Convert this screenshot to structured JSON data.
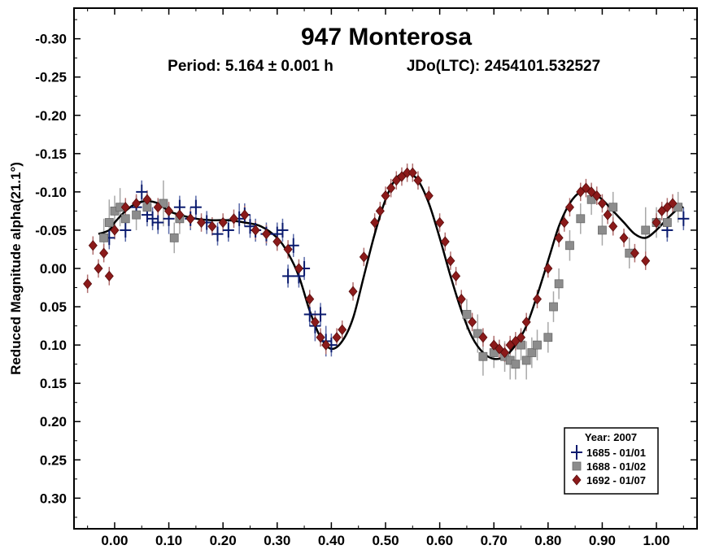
{
  "chart_data": {
    "type": "scatter",
    "title": "947 Monterosa",
    "subtitle_period": "Period: 5.164 ± 0.001 h",
    "subtitle_epoch": "JDo(LTC): 2454101.532527",
    "ylabel": "Reduced Magnitude alpha(21.1°)",
    "xlabel": "",
    "xlim": [
      -0.075,
      1.075
    ],
    "ylim": [
      -0.34,
      0.34
    ],
    "y_inverted": true,
    "grid": false,
    "x_ticks": [
      0.0,
      0.1,
      0.2,
      0.3,
      0.4,
      0.5,
      0.6,
      0.7,
      0.8,
      0.9,
      1.0
    ],
    "x_tick_labels": [
      "0.00",
      "0.10",
      "0.20",
      "0.30",
      "0.40",
      "0.50",
      "0.60",
      "0.70",
      "0.80",
      "0.90",
      "1.00"
    ],
    "y_ticks": [
      -0.3,
      -0.25,
      -0.2,
      -0.15,
      -0.1,
      -0.05,
      0.0,
      0.05,
      0.1,
      0.15,
      0.2,
      0.25,
      0.3
    ],
    "y_tick_labels": [
      "-0.30",
      "-0.25",
      "-0.20",
      "-0.15",
      "-0.10",
      "-0.05",
      "0.00",
      "0.05",
      "0.10",
      "0.15",
      "0.20",
      "0.25",
      "0.30"
    ],
    "legend": {
      "placement": "bottom-right",
      "title": "Year: 2007",
      "entries": [
        {
          "label": "1685 - 01/01",
          "marker": "plus",
          "color": "#0a1a6e"
        },
        {
          "label": "1688 - 01/02",
          "marker": "square",
          "color": "#8c8c8c"
        },
        {
          "label": "1692 - 01/07",
          "marker": "diamond",
          "color": "#8b1a1a"
        }
      ]
    },
    "fit_curve": {
      "x": [
        -0.03,
        -0.01,
        0.0,
        0.02,
        0.04,
        0.06,
        0.08,
        0.1,
        0.12,
        0.15,
        0.18,
        0.21,
        0.24,
        0.27,
        0.3,
        0.32,
        0.34,
        0.36,
        0.38,
        0.4,
        0.42,
        0.44,
        0.46,
        0.48,
        0.5,
        0.52,
        0.54,
        0.56,
        0.58,
        0.6,
        0.62,
        0.64,
        0.66,
        0.68,
        0.7,
        0.72,
        0.74,
        0.76,
        0.78,
        0.8,
        0.82,
        0.84,
        0.86,
        0.88,
        0.9,
        0.92,
        0.94,
        0.96,
        0.98,
        1.0,
        1.02,
        1.04,
        1.05
      ],
      "y": [
        -0.045,
        -0.05,
        -0.06,
        -0.075,
        -0.085,
        -0.088,
        -0.085,
        -0.075,
        -0.07,
        -0.065,
        -0.063,
        -0.063,
        -0.06,
        -0.055,
        -0.04,
        -0.02,
        0.01,
        0.055,
        0.09,
        0.105,
        0.095,
        0.065,
        0.01,
        -0.045,
        -0.09,
        -0.118,
        -0.125,
        -0.115,
        -0.085,
        -0.04,
        0.01,
        0.055,
        0.09,
        0.11,
        0.118,
        0.115,
        0.1,
        0.075,
        0.035,
        -0.01,
        -0.055,
        -0.085,
        -0.1,
        -0.1,
        -0.09,
        -0.075,
        -0.06,
        -0.045,
        -0.04,
        -0.05,
        -0.065,
        -0.078,
        -0.08
      ]
    },
    "series": [
      {
        "name": "1685 - 01/01",
        "marker": "plus",
        "color": "#0a1a6e",
        "x": [
          -0.01,
          0.02,
          0.04,
          0.05,
          0.06,
          0.07,
          0.08,
          0.1,
          0.12,
          0.14,
          0.15,
          0.17,
          0.19,
          0.21,
          0.23,
          0.24,
          0.25,
          0.26,
          0.28,
          0.3,
          0.31,
          0.32,
          0.33,
          0.34,
          0.35,
          0.36,
          0.37,
          0.38,
          0.39,
          0.4,
          1.02,
          1.05
        ],
        "y": [
          -0.04,
          -0.05,
          -0.08,
          -0.1,
          -0.07,
          -0.065,
          -0.06,
          -0.065,
          -0.08,
          -0.065,
          -0.08,
          -0.06,
          -0.045,
          -0.05,
          -0.065,
          -0.07,
          -0.055,
          -0.05,
          -0.045,
          -0.045,
          -0.05,
          0.01,
          -0.03,
          0.01,
          0.0,
          0.06,
          0.075,
          0.06,
          0.095,
          0.1,
          -0.05,
          -0.065
        ],
        "err": [
          0.015,
          0.015,
          0.015,
          0.015,
          0.015,
          0.015,
          0.015,
          0.02,
          0.015,
          0.015,
          0.015,
          0.015,
          0.015,
          0.015,
          0.02,
          0.015,
          0.015,
          0.015,
          0.015,
          0.015,
          0.015,
          0.015,
          0.015,
          0.015,
          0.015,
          0.015,
          0.02,
          0.015,
          0.02,
          0.015,
          0.015,
          0.015
        ]
      },
      {
        "name": "1688 - 01/02",
        "marker": "square",
        "color": "#8c8c8c",
        "x": [
          -0.02,
          -0.01,
          0.0,
          0.01,
          0.02,
          0.04,
          0.06,
          0.09,
          0.11,
          0.12,
          0.65,
          0.67,
          0.68,
          0.7,
          0.72,
          0.73,
          0.74,
          0.75,
          0.76,
          0.77,
          0.78,
          0.8,
          0.81,
          0.82,
          0.84,
          0.86,
          0.88,
          0.9,
          0.92,
          0.95,
          0.98,
          1.0,
          1.02,
          1.04
        ],
        "y": [
          -0.04,
          -0.06,
          -0.075,
          -0.08,
          -0.065,
          -0.07,
          -0.08,
          -0.085,
          -0.04,
          -0.065,
          0.06,
          0.085,
          0.115,
          0.11,
          0.115,
          0.12,
          0.125,
          0.1,
          0.12,
          0.11,
          0.1,
          0.09,
          0.05,
          0.02,
          -0.03,
          -0.065,
          -0.09,
          -0.05,
          -0.08,
          -0.02,
          -0.05,
          -0.06,
          -0.06,
          -0.08
        ],
        "err": [
          0.025,
          0.03,
          0.02,
          0.025,
          0.02,
          0.02,
          0.02,
          0.03,
          0.02,
          0.02,
          0.02,
          0.025,
          0.025,
          0.02,
          0.02,
          0.025,
          0.02,
          0.02,
          0.025,
          0.02,
          0.02,
          0.02,
          0.02,
          0.02,
          0.02,
          0.02,
          0.02,
          0.02,
          0.02,
          0.02,
          0.03,
          0.02,
          0.02,
          0.02
        ]
      },
      {
        "name": "1692 - 01/07",
        "marker": "diamond",
        "color": "#8b1a1a",
        "x": [
          -0.05,
          -0.04,
          -0.03,
          -0.02,
          -0.01,
          0.0,
          0.02,
          0.04,
          0.06,
          0.08,
          0.1,
          0.12,
          0.14,
          0.16,
          0.18,
          0.2,
          0.22,
          0.24,
          0.26,
          0.28,
          0.3,
          0.32,
          0.34,
          0.36,
          0.37,
          0.38,
          0.39,
          0.41,
          0.42,
          0.44,
          0.46,
          0.48,
          0.49,
          0.5,
          0.51,
          0.52,
          0.53,
          0.54,
          0.55,
          0.56,
          0.58,
          0.6,
          0.61,
          0.62,
          0.63,
          0.64,
          0.66,
          0.68,
          0.7,
          0.71,
          0.72,
          0.73,
          0.74,
          0.75,
          0.76,
          0.78,
          0.8,
          0.82,
          0.83,
          0.84,
          0.86,
          0.87,
          0.88,
          0.89,
          0.9,
          0.91,
          0.92,
          0.94,
          0.96,
          0.98,
          1.0,
          1.01,
          1.02,
          1.03
        ],
        "y": [
          0.02,
          -0.03,
          0.0,
          -0.02,
          0.01,
          -0.05,
          -0.08,
          -0.085,
          -0.09,
          -0.08,
          -0.075,
          -0.07,
          -0.065,
          -0.06,
          -0.055,
          -0.06,
          -0.065,
          -0.07,
          -0.05,
          -0.045,
          -0.035,
          -0.025,
          0.0,
          0.04,
          0.07,
          0.09,
          0.1,
          0.09,
          0.08,
          0.03,
          -0.015,
          -0.06,
          -0.075,
          -0.095,
          -0.105,
          -0.115,
          -0.12,
          -0.125,
          -0.125,
          -0.115,
          -0.095,
          -0.06,
          -0.035,
          -0.01,
          0.01,
          0.04,
          0.07,
          0.09,
          0.1,
          0.105,
          0.11,
          0.1,
          0.095,
          0.09,
          0.07,
          0.04,
          0.0,
          -0.04,
          -0.06,
          -0.08,
          -0.1,
          -0.105,
          -0.1,
          -0.095,
          -0.085,
          -0.07,
          -0.055,
          -0.04,
          -0.02,
          -0.01,
          -0.06,
          -0.075,
          -0.08,
          -0.085
        ],
        "err": [
          0.012,
          0.012,
          0.012,
          0.012,
          0.012,
          0.012,
          0.012,
          0.012,
          0.012,
          0.012,
          0.012,
          0.012,
          0.012,
          0.012,
          0.012,
          0.012,
          0.012,
          0.012,
          0.012,
          0.012,
          0.012,
          0.012,
          0.012,
          0.012,
          0.012,
          0.012,
          0.012,
          0.012,
          0.012,
          0.012,
          0.012,
          0.012,
          0.012,
          0.012,
          0.012,
          0.012,
          0.012,
          0.012,
          0.012,
          0.012,
          0.012,
          0.012,
          0.012,
          0.012,
          0.012,
          0.012,
          0.012,
          0.012,
          0.012,
          0.012,
          0.012,
          0.012,
          0.012,
          0.012,
          0.012,
          0.012,
          0.012,
          0.012,
          0.012,
          0.012,
          0.012,
          0.012,
          0.012,
          0.012,
          0.012,
          0.012,
          0.012,
          0.012,
          0.012,
          0.012,
          0.012,
          0.012,
          0.012,
          0.012
        ]
      }
    ]
  }
}
